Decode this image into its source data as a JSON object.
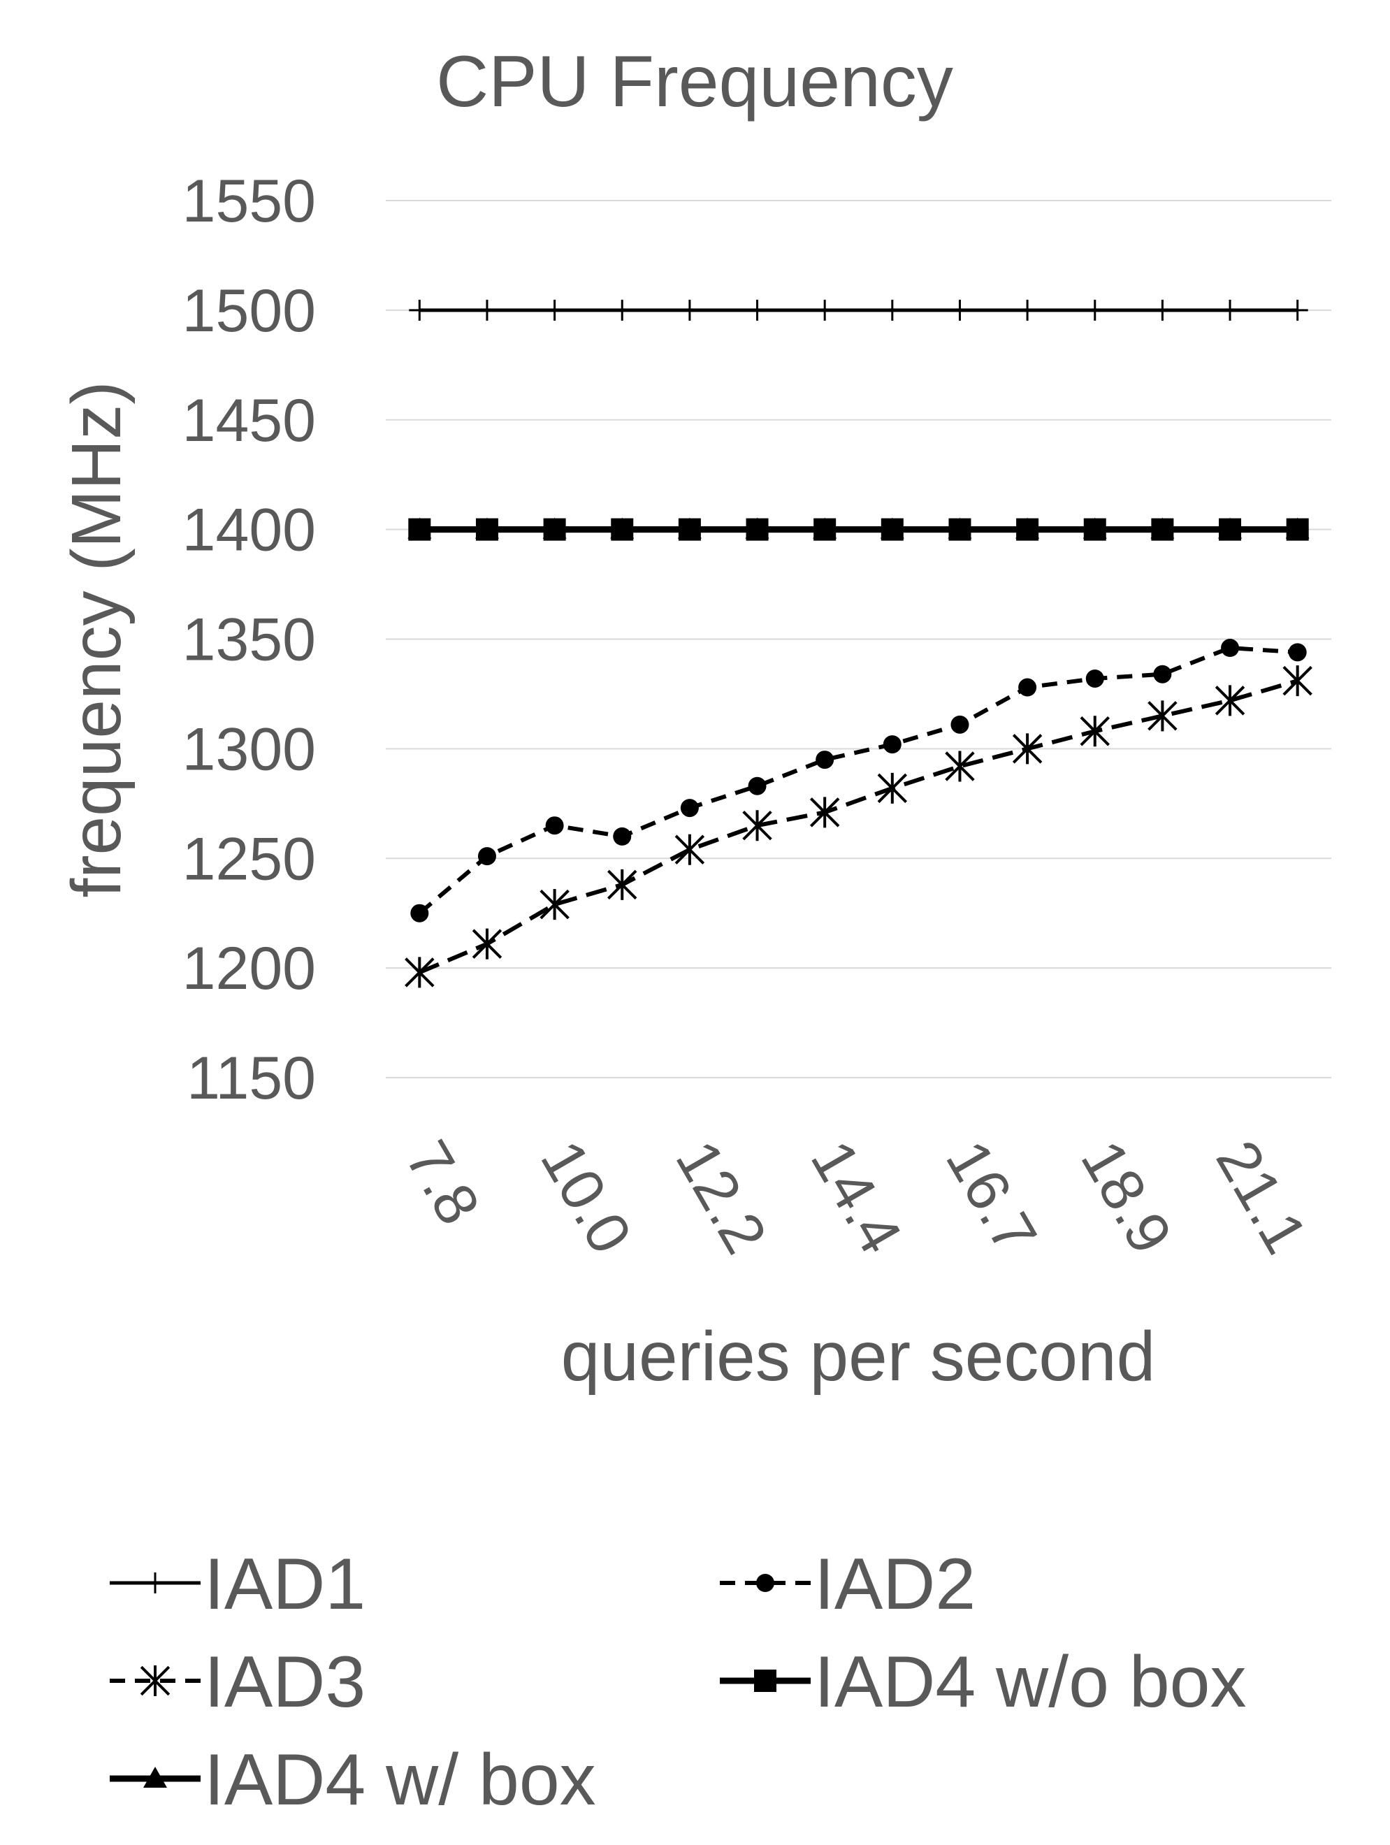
{
  "chart_data": {
    "type": "line",
    "title": "CPU Frequency",
    "xlabel": "queries per second",
    "ylabel": "frequency (MHz)",
    "ylim": [
      1150,
      1550
    ],
    "yticks": [
      1150,
      1200,
      1250,
      1300,
      1350,
      1400,
      1450,
      1500,
      1550
    ],
    "grid": true,
    "legend_position": "bottom",
    "x": [
      7.8,
      8.9,
      10.0,
      11.1,
      12.2,
      13.3,
      14.4,
      15.6,
      16.7,
      17.8,
      18.9,
      20.0,
      21.1,
      22.2
    ],
    "xtick_labels": [
      "7.8",
      "",
      "10.0",
      "",
      "12.2",
      "",
      "14.4",
      "",
      "16.7",
      "",
      "18.9",
      "",
      "21.1",
      ""
    ],
    "series": [
      {
        "name": "IAD1",
        "marker": "plus",
        "dash": "solid",
        "values": [
          1500,
          1500,
          1500,
          1500,
          1500,
          1500,
          1500,
          1500,
          1500,
          1500,
          1500,
          1500,
          1500,
          1500
        ]
      },
      {
        "name": "IAD2",
        "marker": "circle",
        "dash": "dashed",
        "values": [
          1225,
          1251,
          1265,
          1260,
          1273,
          1283,
          1295,
          1302,
          1311,
          1328,
          1332,
          1334,
          1346,
          1344
        ]
      },
      {
        "name": "IAD3",
        "marker": "asterisk",
        "dash": "dashed",
        "values": [
          1198,
          1211,
          1229,
          1238,
          1254,
          1265,
          1271,
          1282,
          1292,
          1300,
          1308,
          1315,
          1322,
          1331
        ]
      },
      {
        "name": "IAD4 w/o box",
        "marker": "square",
        "dash": "solid",
        "values": [
          1400,
          1400,
          1400,
          1400,
          1400,
          1400,
          1400,
          1400,
          1400,
          1400,
          1400,
          1400,
          1400,
          1400
        ]
      },
      {
        "name": "IAD4 w/ box",
        "marker": "triangle",
        "dash": "solid",
        "values": [
          1400,
          1400,
          1400,
          1400,
          1400,
          1400,
          1400,
          1400,
          1400,
          1400,
          1400,
          1400,
          1400,
          1400
        ]
      }
    ]
  }
}
